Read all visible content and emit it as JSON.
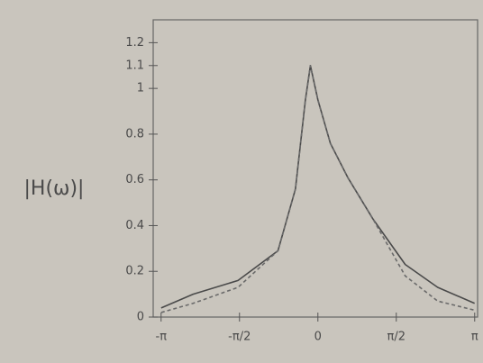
{
  "chart_data": {
    "type": "line",
    "y_label": "|H(ω)|",
    "x": [
      -3.14,
      -2.5,
      -1.6,
      -0.8,
      -0.45,
      -0.25,
      -0.15,
      0,
      0.25,
      0.6,
      1.1,
      1.75,
      2.4,
      3.14
    ],
    "series": [
      {
        "color": "#4a4a4a",
        "dash": false,
        "values": [
          0.04,
          0.1,
          0.16,
          0.29,
          0.56,
          0.95,
          1.1,
          0.95,
          0.76,
          0.61,
          0.43,
          0.23,
          0.13,
          0.06
        ]
      },
      {
        "color": "#6a6a6a",
        "dash": true,
        "values": [
          0.02,
          0.06,
          0.13,
          0.29,
          0.56,
          0.95,
          1.1,
          0.95,
          0.76,
          0.61,
          0.43,
          0.18,
          0.07,
          0.03
        ]
      }
    ],
    "xlim": [
      -3.3,
      3.2
    ],
    "ylim": [
      0,
      1.3
    ],
    "xticks": [
      {
        "value": -3.14159,
        "label": "-π"
      },
      {
        "value": -1.5708,
        "label": "-π/2"
      },
      0,
      {
        "value": 1.5708,
        "label": "π/2"
      },
      {
        "value": 3.14159,
        "label": "π"
      }
    ],
    "yticks": [
      0,
      0.2,
      0.4,
      0.6,
      0.8,
      1,
      1.1,
      1.2
    ],
    "grid": false
  }
}
